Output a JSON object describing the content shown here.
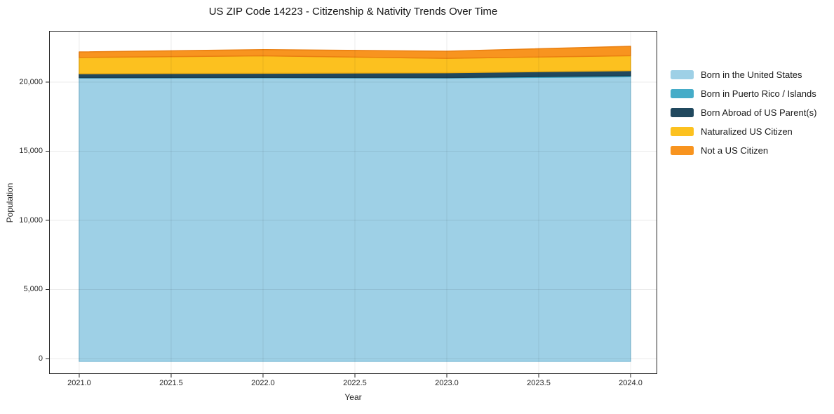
{
  "title": "US ZIP Code 14223 - Citizenship & Nativity Trends Over Time",
  "xlabel": "Year",
  "ylabel": "Population",
  "chart_data": {
    "type": "area",
    "stacked": true,
    "title": "US ZIP Code 14223 - Citizenship & Nativity Trends Over Time",
    "xlabel": "Year",
    "ylabel": "Population",
    "x": [
      2021,
      2022,
      2023,
      2024
    ],
    "series": [
      {
        "name": "Born in the United States",
        "color": "#9ED0E6",
        "edge": "#8CC4DC",
        "values": [
          20300,
          20310,
          20300,
          20390
        ]
      },
      {
        "name": "Born in Puerto Rico / Islands",
        "color": "#45ACC8",
        "edge": "#399DB9",
        "values": [
          30,
          30,
          30,
          80
        ]
      },
      {
        "name": "Born Abroad of US Parent(s)",
        "color": "#20485E",
        "edge": "#1B3E52",
        "values": [
          280,
          300,
          350,
          360
        ]
      },
      {
        "name": "Naturalized US Citizen",
        "color": "#FCC11F",
        "edge": "#EFAF12",
        "values": [
          1170,
          1260,
          1040,
          1080
        ]
      },
      {
        "name": "Not a US Citizen",
        "color": "#F8941F",
        "edge": "#EA7F10",
        "values": [
          400,
          450,
          510,
          680
        ]
      }
    ],
    "xticks": {
      "values": [
        2021.0,
        2021.5,
        2022.0,
        2022.5,
        2023.0,
        2023.5,
        2024.0
      ],
      "labels": [
        "2021.0",
        "2021.5",
        "2022.0",
        "2022.5",
        "2023.0",
        "2023.5",
        "2024.0"
      ]
    },
    "yticks": {
      "values": [
        0,
        5000,
        10000,
        15000,
        20000
      ],
      "labels": [
        "0",
        "5,000",
        "10,000",
        "15,000",
        "20,000"
      ]
    },
    "xlim": [
      2020.836,
      2024.145
    ],
    "ylim": [
      -1117,
      23705
    ],
    "grid": true,
    "legend_position": "right",
    "spine_color": "#262626",
    "grid_color": "rgba(0,0,0,0.08)"
  }
}
